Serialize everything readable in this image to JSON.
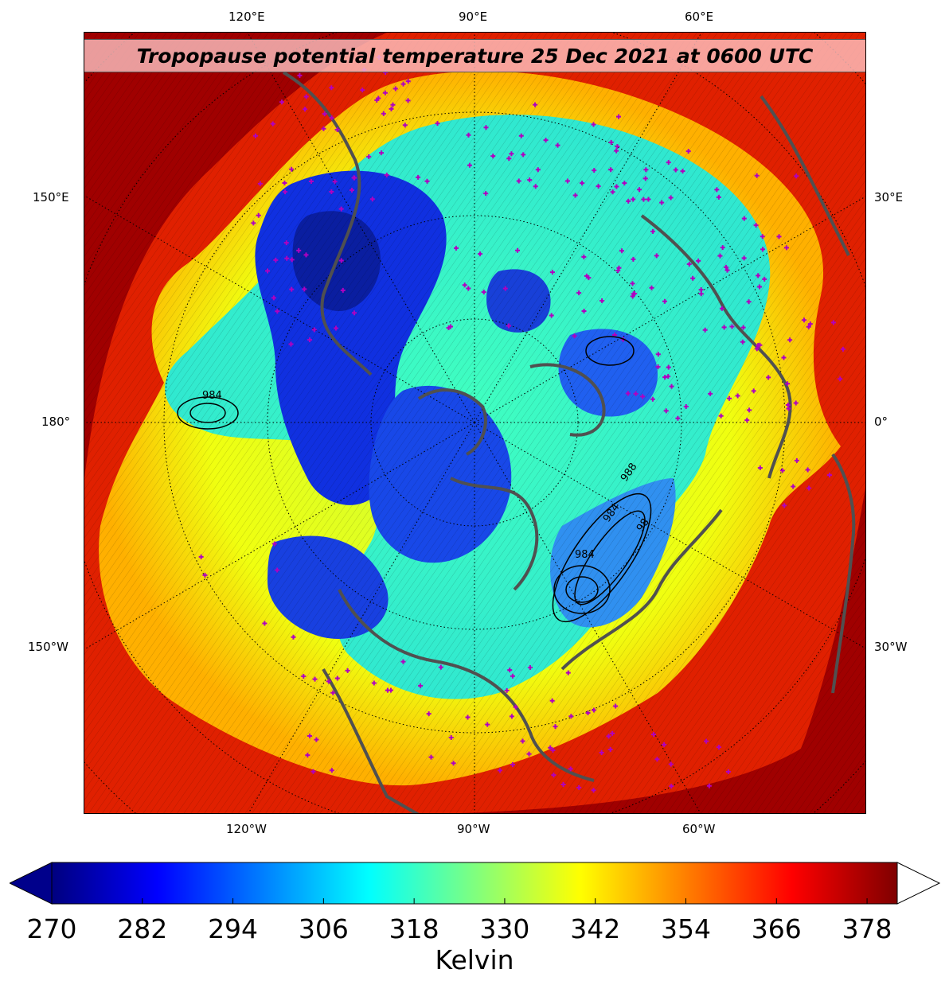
{
  "title": "Tropopause potential temperature 25 Dec 2021 at 0600 UTC",
  "map": {
    "projection": "north-polar-stereographic",
    "field": "tropopause potential temperature",
    "overlays": [
      "potential temperature contours",
      "sea-level pressure contours",
      "coastlines",
      "lat/lon grid",
      "station markers"
    ],
    "colors": {
      "background_high": "#8b0000",
      "low_core": "#0a1ea0",
      "coast": "#505050",
      "station_marker": "#b000c0"
    },
    "lon_labels_top": [
      "120°E",
      "90°E",
      "60°E"
    ],
    "lon_labels_bottom": [
      "120°W",
      "90°W",
      "60°W"
    ],
    "lon_labels_left": [
      "150°E",
      "180°",
      "150°W"
    ],
    "lon_labels_right": [
      "30°E",
      "0°",
      "30°W"
    ],
    "pressure_contour_labels": [
      "988",
      "984",
      "984",
      "984",
      "98"
    ]
  },
  "colorbar": {
    "label": "Kelvin",
    "ticks": [
      "270",
      "282",
      "294",
      "306",
      "318",
      "330",
      "342",
      "354",
      "366",
      "378"
    ],
    "min": 270,
    "max": 382,
    "extend_low_color": "#00008b",
    "extend_high_color": "#ffffff",
    "stops": [
      "#00007f",
      "#0000ff",
      "#007fff",
      "#00ffff",
      "#7fff7f",
      "#ffff00",
      "#ff7f00",
      "#ff0000",
      "#7f0000"
    ]
  }
}
